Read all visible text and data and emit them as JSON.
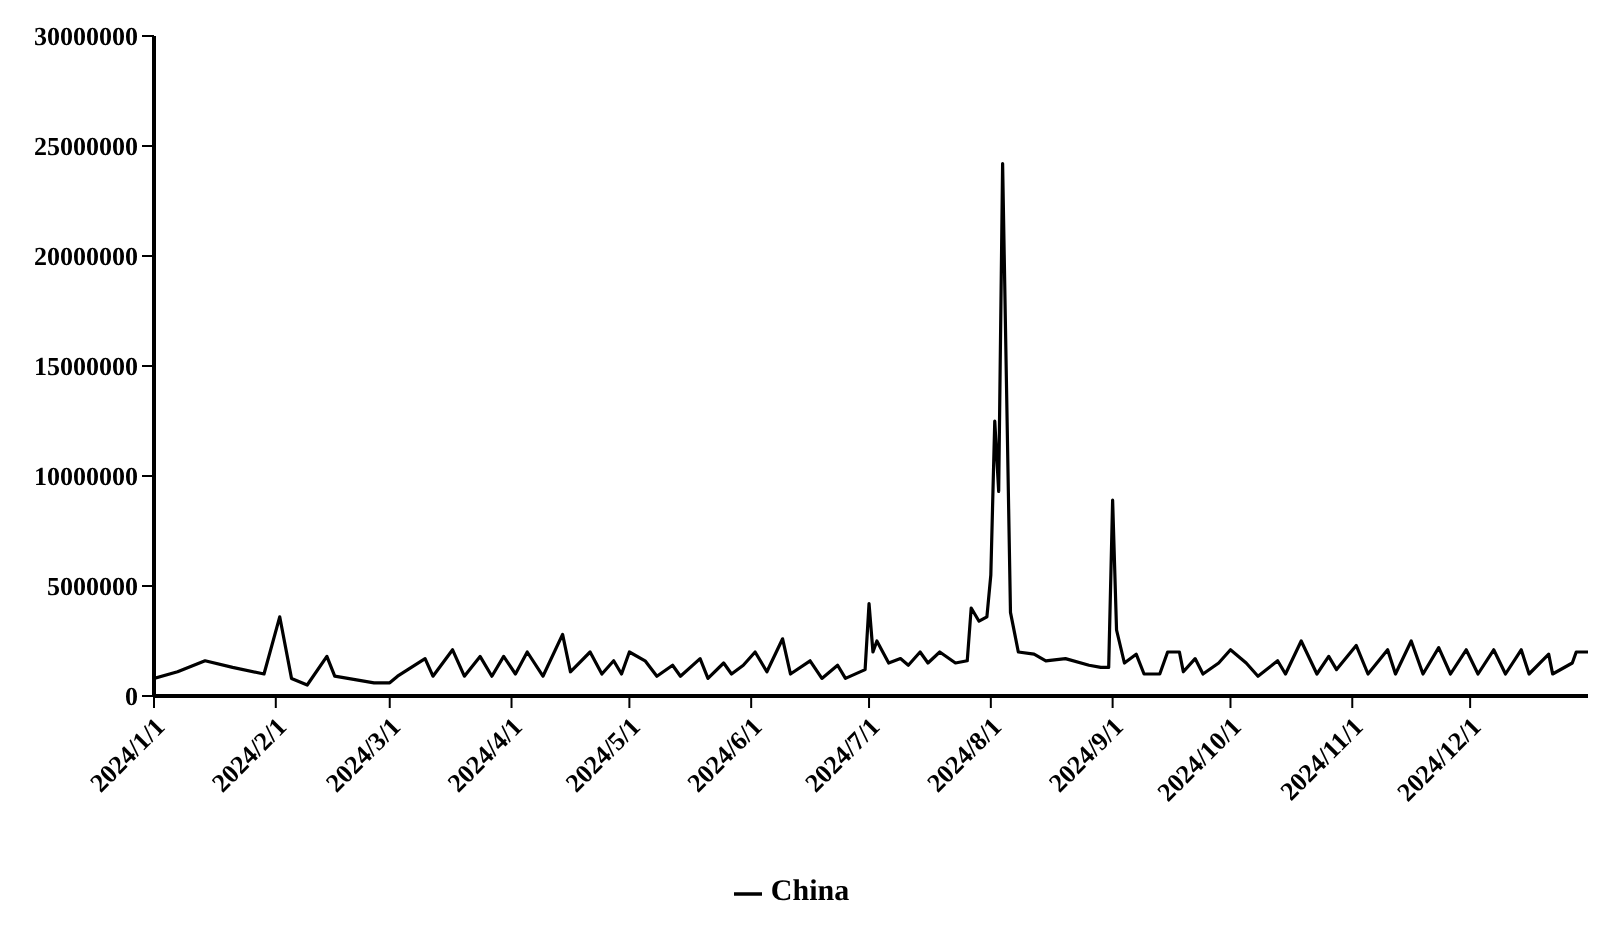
{
  "chart_data": {
    "type": "line",
    "xlim": [
      "2024-01-01",
      "2024-12-31"
    ],
    "xticks": [
      {
        "value": "2024-01-01",
        "label": "2024/1/1"
      },
      {
        "value": "2024-02-01",
        "label": "2024/2/1"
      },
      {
        "value": "2024-03-01",
        "label": "2024/3/1"
      },
      {
        "value": "2024-04-01",
        "label": "2024/4/1"
      },
      {
        "value": "2024-05-01",
        "label": "2024/5/1"
      },
      {
        "value": "2024-06-01",
        "label": "2024/6/1"
      },
      {
        "value": "2024-07-01",
        "label": "2024/7/1"
      },
      {
        "value": "2024-08-01",
        "label": "2024/8/1"
      },
      {
        "value": "2024-09-01",
        "label": "2024/9/1"
      },
      {
        "value": "2024-10-01",
        "label": "2024/10/1"
      },
      {
        "value": "2024-11-01",
        "label": "2024/11/1"
      },
      {
        "value": "2024-12-01",
        "label": "2024/12/1"
      }
    ],
    "ylim": [
      0,
      30000000
    ],
    "yticks": [
      0,
      5000000,
      10000000,
      15000000,
      20000000,
      25000000,
      30000000
    ],
    "grid": false,
    "legend": "bottom",
    "marker": "none",
    "line_style": "solid",
    "x": [
      "2024-01-01",
      "2024-01-07",
      "2024-01-14",
      "2024-01-21",
      "2024-01-29",
      "2024-02-02",
      "2024-02-05",
      "2024-02-09",
      "2024-02-14",
      "2024-02-16",
      "2024-02-26",
      "2024-03-01",
      "2024-03-03",
      "2024-03-10",
      "2024-03-12",
      "2024-03-17",
      "2024-03-20",
      "2024-03-24",
      "2024-03-27",
      "2024-03-30",
      "2024-04-02",
      "2024-04-05",
      "2024-04-09",
      "2024-04-14",
      "2024-04-16",
      "2024-04-21",
      "2024-04-24",
      "2024-04-27",
      "2024-04-29",
      "2024-05-01",
      "2024-05-05",
      "2024-05-08",
      "2024-05-12",
      "2024-05-14",
      "2024-05-19",
      "2024-05-21",
      "2024-05-25",
      "2024-05-27",
      "2024-05-30",
      "2024-06-02",
      "2024-06-05",
      "2024-06-09",
      "2024-06-11",
      "2024-06-16",
      "2024-06-19",
      "2024-06-23",
      "2024-06-25",
      "2024-06-30",
      "2024-07-01",
      "2024-07-02",
      "2024-07-03",
      "2024-07-06",
      "2024-07-09",
      "2024-07-11",
      "2024-07-14",
      "2024-07-16",
      "2024-07-19",
      "2024-07-23",
      "2024-07-26",
      "2024-07-27",
      "2024-07-29",
      "2024-07-31",
      "2024-08-01",
      "2024-08-02",
      "2024-08-03",
      "2024-08-04",
      "2024-08-06",
      "2024-08-08",
      "2024-08-12",
      "2024-08-15",
      "2024-08-20",
      "2024-08-26",
      "2024-08-29",
      "2024-08-31",
      "2024-09-01",
      "2024-09-02",
      "2024-09-04",
      "2024-09-07",
      "2024-09-09",
      "2024-09-13",
      "2024-09-15",
      "2024-09-18",
      "2024-09-19",
      "2024-09-22",
      "2024-09-24",
      "2024-09-28",
      "2024-10-01",
      "2024-10-05",
      "2024-10-08",
      "2024-10-13",
      "2024-10-15",
      "2024-10-19",
      "2024-10-23",
      "2024-10-26",
      "2024-10-28",
      "2024-11-02",
      "2024-11-05",
      "2024-11-10",
      "2024-11-12",
      "2024-11-16",
      "2024-11-19",
      "2024-11-23",
      "2024-11-26",
      "2024-11-30",
      "2024-12-03",
      "2024-12-07",
      "2024-12-10",
      "2024-12-14",
      "2024-12-16",
      "2024-12-21",
      "2024-12-22",
      "2024-12-27",
      "2024-12-28",
      "2024-12-31"
    ],
    "series": [
      {
        "name": "China",
        "color": "#000000",
        "values": [
          800000,
          1100000,
          1600000,
          1300000,
          1000000,
          3600000,
          800000,
          500000,
          1800000,
          900000,
          600000,
          600000,
          900000,
          1700000,
          900000,
          2100000,
          900000,
          1800000,
          900000,
          1800000,
          1000000,
          2000000,
          900000,
          2800000,
          1100000,
          2000000,
          1000000,
          1600000,
          1000000,
          2000000,
          1600000,
          900000,
          1400000,
          900000,
          1700000,
          800000,
          1500000,
          1000000,
          1400000,
          2000000,
          1100000,
          2600000,
          1000000,
          1600000,
          800000,
          1400000,
          800000,
          1200000,
          4200000,
          2000000,
          2500000,
          1500000,
          1700000,
          1400000,
          2000000,
          1500000,
          2000000,
          1500000,
          1600000,
          4000000,
          3400000,
          3600000,
          5500000,
          12500000,
          9300000,
          24200000,
          3800000,
          2000000,
          1900000,
          1600000,
          1700000,
          1400000,
          1300000,
          1300000,
          8900000,
          3000000,
          1500000,
          1900000,
          1000000,
          1000000,
          2000000,
          2000000,
          1100000,
          1700000,
          1000000,
          1500000,
          2100000,
          1500000,
          900000,
          1600000,
          1000000,
          2500000,
          1000000,
          1800000,
          1200000,
          2300000,
          1000000,
          2100000,
          1000000,
          2500000,
          1000000,
          2200000,
          1000000,
          2100000,
          1000000,
          2100000,
          1000000,
          2100000,
          1000000,
          1900000,
          1000000,
          1500000,
          2000000,
          2000000
        ]
      }
    ]
  }
}
